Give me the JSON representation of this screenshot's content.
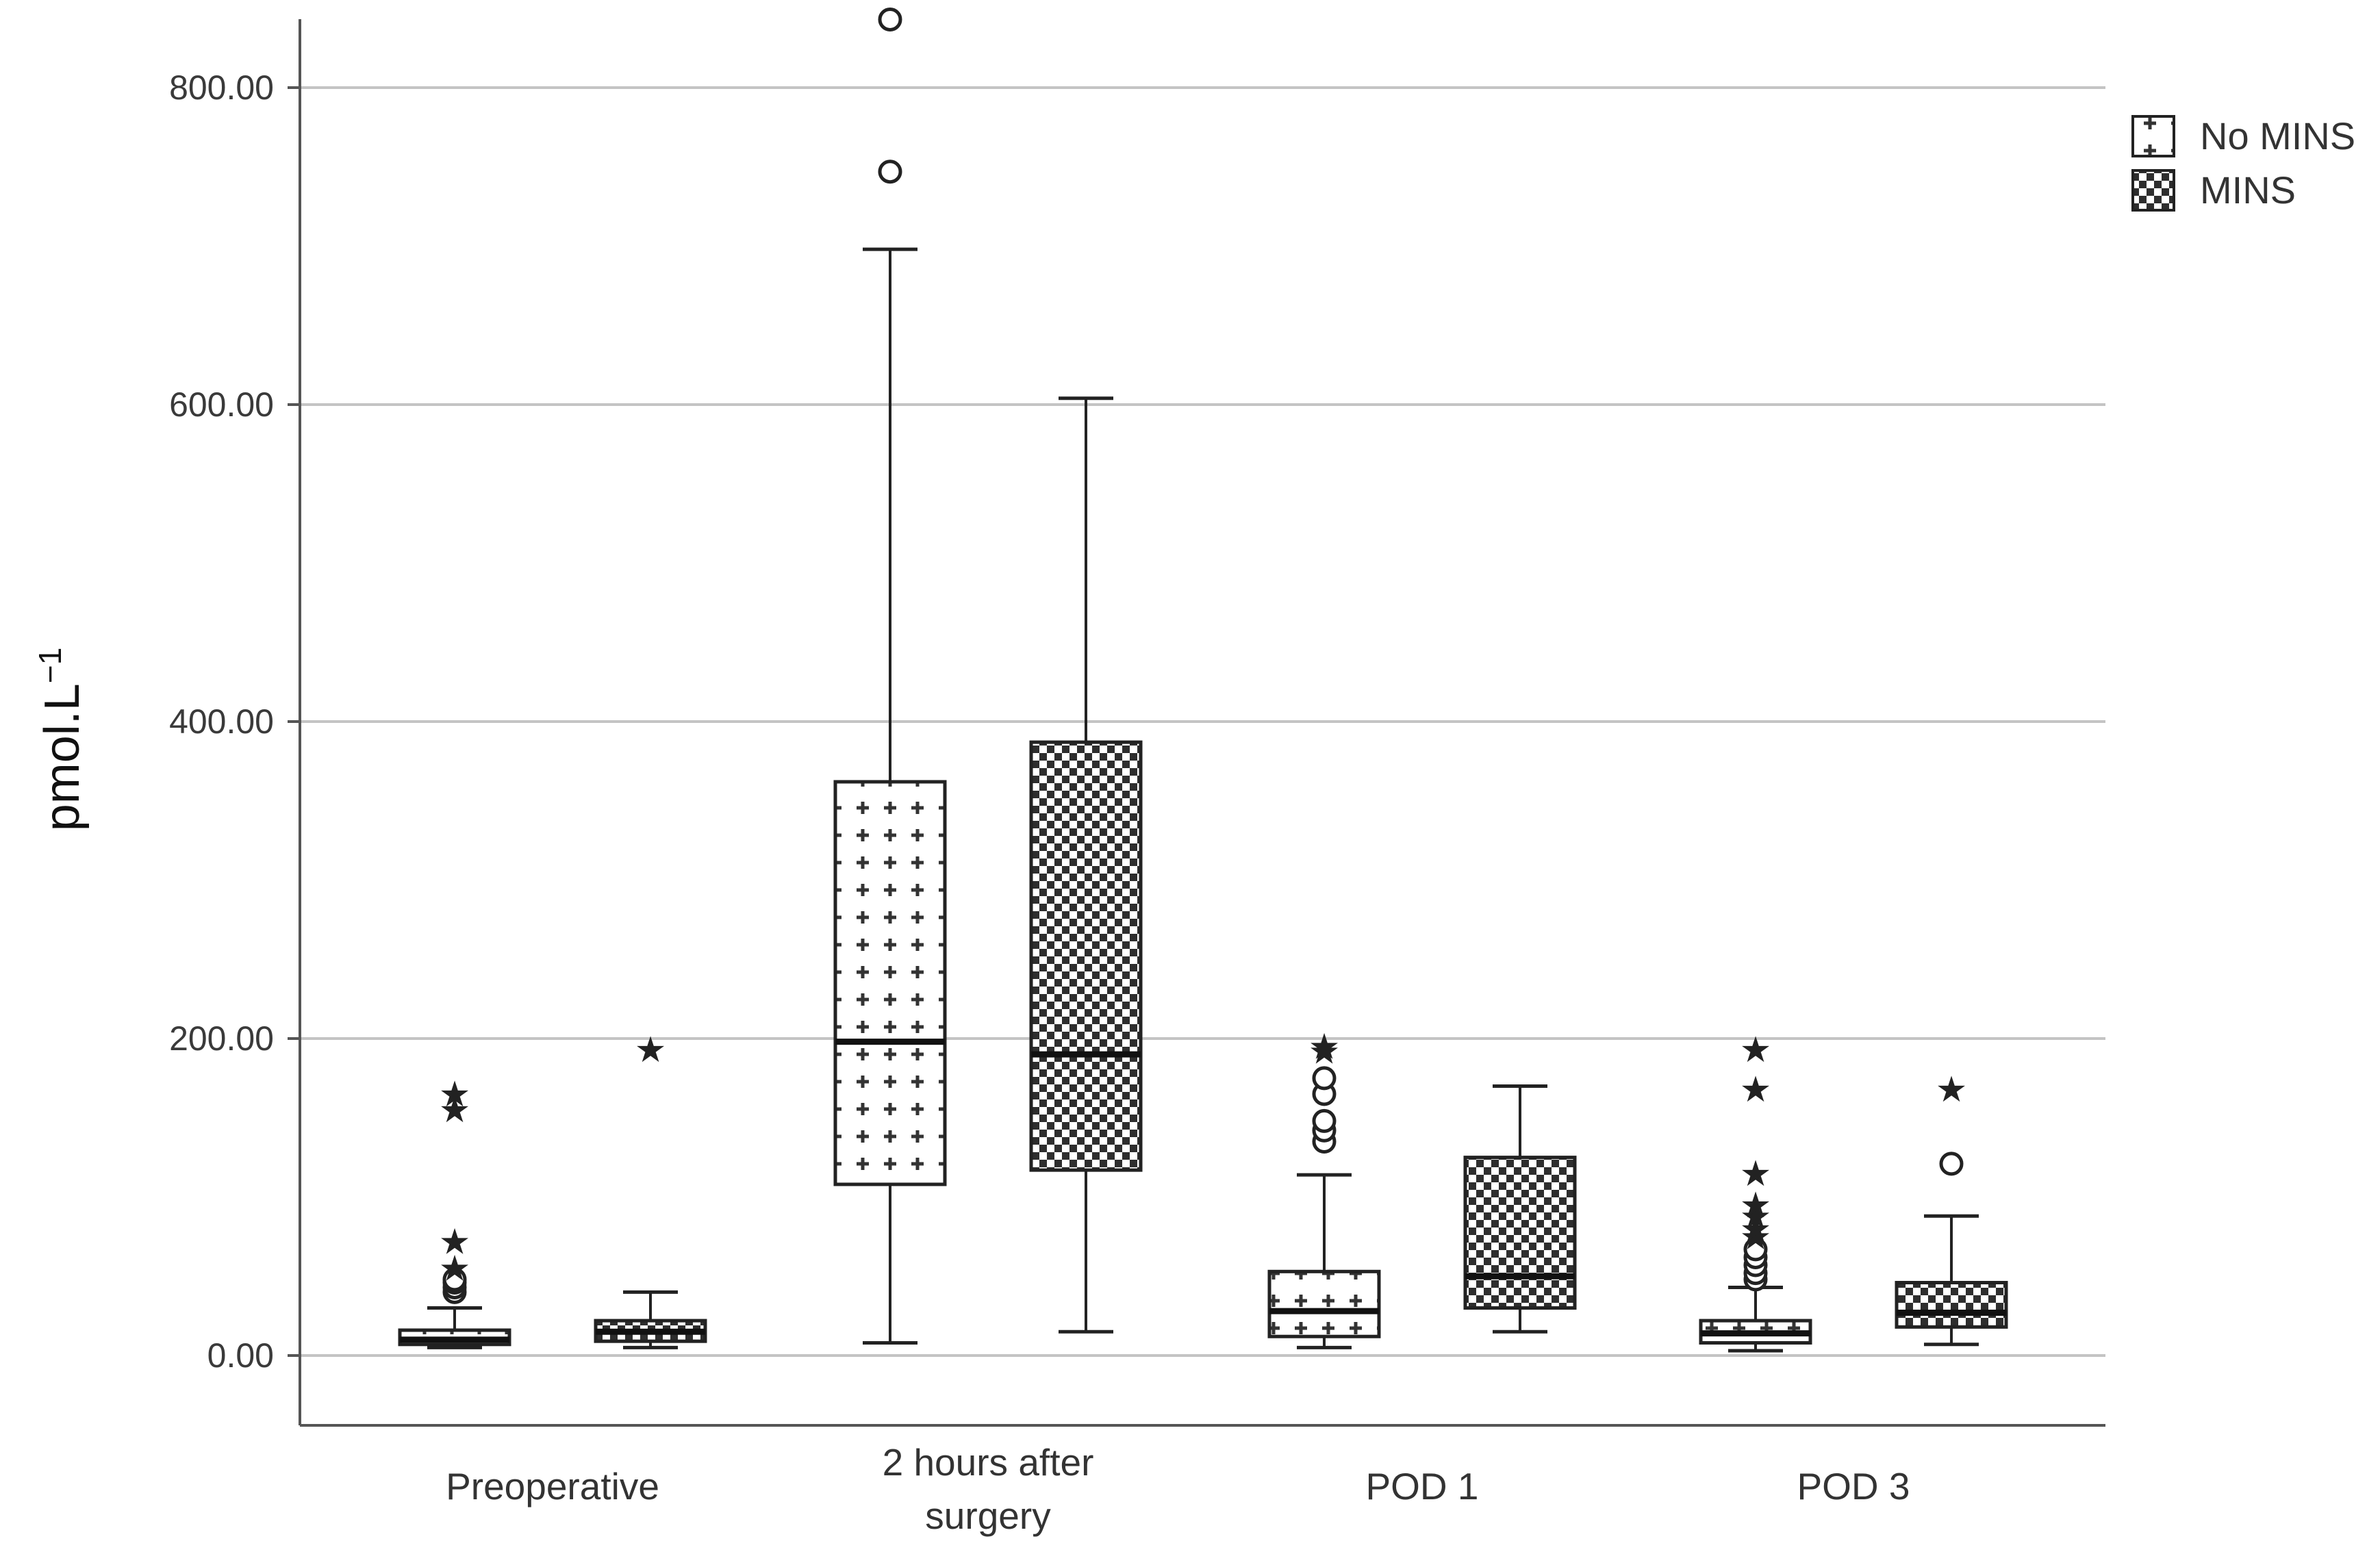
{
  "chart_data": {
    "type": "box",
    "title": "",
    "xlabel": "",
    "ylabel": "pmol.L",
    "ylabel_superscript": "−1",
    "ylim": [
      -45,
      850
    ],
    "yticks": [
      {
        "value": 0,
        "label": "0.00"
      },
      {
        "value": 200,
        "label": "200.00"
      },
      {
        "value": 400,
        "label": "400.00"
      },
      {
        "value": 600,
        "label": "600.00"
      },
      {
        "value": 800,
        "label": "800.00"
      }
    ],
    "grid": true,
    "legend_position": "top-right",
    "categories": [
      {
        "label_lines": [
          "Preoperative"
        ]
      },
      {
        "label_lines": [
          "2 hours after",
          "surgery"
        ]
      },
      {
        "label_lines": [
          "POD 1"
        ]
      },
      {
        "label_lines": [
          "POD 3"
        ]
      }
    ],
    "series": [
      {
        "name": "No MINS",
        "pattern": "plus",
        "boxes": [
          {
            "min": 5,
            "q1": 7,
            "median": 10,
            "q3": 16,
            "max": 30,
            "outliers": [
              40,
              43,
              46,
              48
            ],
            "extremes": [
              55,
              72,
              155,
              165
            ]
          },
          {
            "min": 8,
            "q1": 108,
            "median": 198,
            "q3": 362,
            "max": 698,
            "outliers": [
              747,
              843
            ],
            "extremes": []
          },
          {
            "min": 5,
            "q1": 12,
            "median": 28,
            "q3": 53,
            "max": 114,
            "outliers": [
              135,
              142,
              148,
              165,
              175
            ],
            "extremes": [
              192,
              195
            ]
          },
          {
            "min": 3,
            "q1": 8,
            "median": 14,
            "q3": 22,
            "max": 43,
            "outliers": [
              48,
              52,
              57,
              62,
              67
            ],
            "extremes": [
              75,
              80,
              88,
              95,
              115,
              168,
              193
            ]
          }
        ]
      },
      {
        "name": "MINS",
        "pattern": "check",
        "boxes": [
          {
            "min": 5,
            "q1": 9,
            "median": 15,
            "q3": 22,
            "max": 40,
            "outliers": [],
            "extremes": [
              193
            ]
          },
          {
            "min": 15,
            "q1": 117,
            "median": 190,
            "q3": 387,
            "max": 604,
            "outliers": [],
            "extremes": []
          },
          {
            "min": 15,
            "q1": 30,
            "median": 50,
            "q3": 125,
            "max": 170,
            "outliers": [],
            "extremes": []
          },
          {
            "min": 7,
            "q1": 18,
            "median": 27,
            "q3": 46,
            "max": 88,
            "outliers": [
              121
            ],
            "extremes": [
              168
            ]
          }
        ]
      }
    ]
  }
}
